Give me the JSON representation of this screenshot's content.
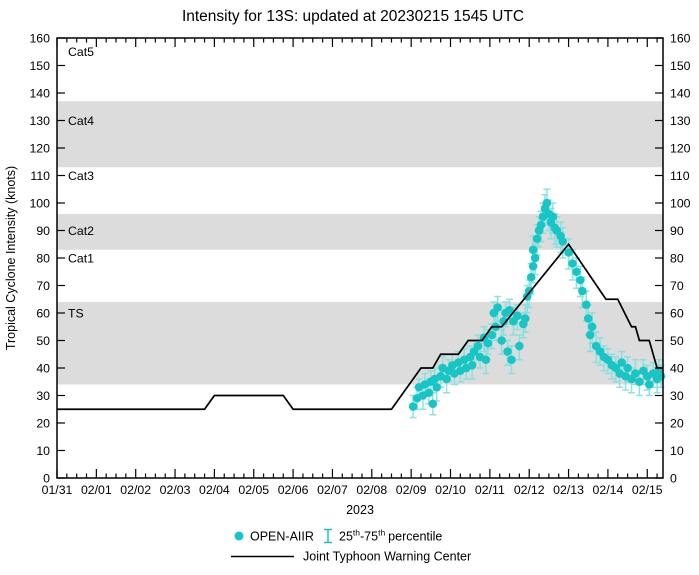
{
  "colors": {
    "accent_cyan": "#18c5c5",
    "errorbar_cyan": "#85dfdf",
    "band_gray": "#dcdcdc",
    "line_black": "#000000"
  },
  "chart_data": {
    "type": "line+scatter",
    "title": "Intensity for 13S: updated at 20230215 1545 UTC",
    "ylabel": "Tropical Cyclone Intensity (knots)",
    "xlabel_year": "2023",
    "ylim": [
      0,
      160
    ],
    "y_ticks": [
      0,
      10,
      20,
      30,
      40,
      50,
      60,
      70,
      80,
      90,
      100,
      110,
      120,
      130,
      140,
      150,
      160
    ],
    "x_range_days": [
      0,
      15.4
    ],
    "x_day_labels": [
      "01/31",
      "02/01",
      "02/02",
      "02/03",
      "02/04",
      "02/05",
      "02/06",
      "02/07",
      "02/08",
      "02/09",
      "02/10",
      "02/11",
      "02/12",
      "02/13",
      "02/14",
      "02/15"
    ],
    "minor_tick_step_days": 0.25,
    "grid": false,
    "legend_position": "bottom-center",
    "bands": [
      {
        "label": "TS",
        "min": 34,
        "max": 64,
        "shaded": true,
        "label_at": 60
      },
      {
        "label": "Cat1",
        "min": 64,
        "max": 83,
        "shaded": false,
        "label_at": 80
      },
      {
        "label": "Cat2",
        "min": 83,
        "max": 96,
        "shaded": true,
        "label_at": 90
      },
      {
        "label": "Cat3",
        "min": 96,
        "max": 113,
        "shaded": false,
        "label_at": 110
      },
      {
        "label": "Cat4",
        "min": 113,
        "max": 137,
        "shaded": true,
        "label_at": 130
      },
      {
        "label": "Cat5",
        "min": 137,
        "max": 160,
        "shaded": false,
        "label_at": 155
      }
    ],
    "series": [
      {
        "name": "Joint Typhoon Warning Center",
        "type": "line",
        "color": "#000000",
        "points": [
          [
            0,
            25
          ],
          [
            3.75,
            25
          ],
          [
            4,
            30
          ],
          [
            5.75,
            30
          ],
          [
            6,
            25
          ],
          [
            8.5,
            25
          ],
          [
            8.75,
            30
          ],
          [
            9.25,
            40
          ],
          [
            9.55,
            40
          ],
          [
            9.75,
            45
          ],
          [
            10.2,
            45
          ],
          [
            10.45,
            50
          ],
          [
            10.8,
            50
          ],
          [
            11.05,
            55
          ],
          [
            11.3,
            55
          ],
          [
            13.0,
            85
          ],
          [
            13.95,
            65
          ],
          [
            14.25,
            65
          ],
          [
            14.6,
            55
          ],
          [
            14.7,
            55
          ],
          [
            14.8,
            50
          ],
          [
            15.05,
            50
          ],
          [
            15.25,
            40
          ],
          [
            15.4,
            40
          ]
        ]
      },
      {
        "name": "OPEN-AIIR",
        "type": "scatter-errorbar",
        "color": "#18c5c5",
        "errorbar_color": "#85dfdf",
        "points": [
          [
            9.05,
            26,
            22,
            30
          ],
          [
            9.15,
            29,
            25,
            33
          ],
          [
            9.2,
            33,
            29,
            36
          ],
          [
            9.3,
            30,
            25,
            34
          ],
          [
            9.35,
            34,
            30,
            38
          ],
          [
            9.45,
            31,
            27,
            36
          ],
          [
            9.5,
            35,
            31,
            39
          ],
          [
            9.55,
            27,
            23,
            31
          ],
          [
            9.6,
            36,
            32,
            40
          ],
          [
            9.65,
            33,
            28,
            37
          ],
          [
            9.75,
            37,
            33,
            41
          ],
          [
            9.8,
            40,
            36,
            44
          ],
          [
            9.9,
            36,
            31,
            40
          ],
          [
            9.95,
            39,
            35,
            43
          ],
          [
            10.05,
            41,
            37,
            45
          ],
          [
            10.1,
            38,
            34,
            42
          ],
          [
            10.2,
            42,
            38,
            46
          ],
          [
            10.25,
            39,
            35,
            43
          ],
          [
            10.35,
            43,
            39,
            47
          ],
          [
            10.4,
            40,
            36,
            44
          ],
          [
            10.5,
            44,
            40,
            48
          ],
          [
            10.55,
            41,
            36,
            45
          ],
          [
            10.6,
            46,
            42,
            50
          ],
          [
            10.7,
            48,
            43,
            52
          ],
          [
            10.75,
            44,
            40,
            49
          ],
          [
            10.85,
            51,
            46,
            55
          ],
          [
            10.9,
            43,
            38,
            47
          ],
          [
            10.95,
            49,
            45,
            54
          ],
          [
            11.05,
            52,
            47,
            56
          ],
          [
            11.1,
            60,
            55,
            64
          ],
          [
            11.15,
            55,
            50,
            60
          ],
          [
            11.2,
            62,
            57,
            66
          ],
          [
            11.3,
            50,
            45,
            54
          ],
          [
            11.35,
            57,
            52,
            61
          ],
          [
            11.4,
            60,
            55,
            64
          ],
          [
            11.45,
            46,
            41,
            50
          ],
          [
            11.5,
            61,
            56,
            65
          ],
          [
            11.55,
            43,
            38,
            48
          ],
          [
            11.6,
            57,
            52,
            62
          ],
          [
            11.7,
            59,
            54,
            63
          ],
          [
            11.75,
            48,
            43,
            52
          ],
          [
            11.85,
            56,
            51,
            60
          ],
          [
            11.9,
            58,
            53,
            63
          ],
          [
            11.95,
            66,
            60,
            70
          ],
          [
            12.0,
            68,
            62,
            72
          ],
          [
            12.05,
            73,
            67,
            78
          ],
          [
            12.1,
            77,
            71,
            82
          ],
          [
            12.1,
            83,
            77,
            88
          ],
          [
            12.15,
            80,
            74,
            85
          ],
          [
            12.2,
            87,
            81,
            92
          ],
          [
            12.25,
            90,
            84,
            95
          ],
          [
            12.3,
            92,
            86,
            97
          ],
          [
            12.35,
            95,
            89,
            100
          ],
          [
            12.4,
            98,
            92,
            103
          ],
          [
            12.45,
            100,
            94,
            105
          ],
          [
            12.5,
            96,
            90,
            101
          ],
          [
            12.55,
            93,
            87,
            98
          ],
          [
            12.6,
            95,
            89,
            100
          ],
          [
            12.65,
            91,
            85,
            96
          ],
          [
            12.7,
            90,
            84,
            95
          ],
          [
            12.8,
            88,
            82,
            93
          ],
          [
            12.85,
            86,
            80,
            91
          ],
          [
            13.0,
            82,
            76,
            87
          ],
          [
            13.1,
            78,
            72,
            83
          ],
          [
            13.2,
            75,
            69,
            80
          ],
          [
            13.3,
            72,
            66,
            77
          ],
          [
            13.35,
            68,
            62,
            73
          ],
          [
            13.45,
            63,
            57,
            68
          ],
          [
            13.5,
            58,
            52,
            63
          ],
          [
            13.55,
            52,
            46,
            57
          ],
          [
            13.6,
            55,
            49,
            60
          ],
          [
            13.7,
            48,
            42,
            53
          ],
          [
            13.8,
            46,
            41,
            51
          ],
          [
            13.9,
            44,
            39,
            48
          ],
          [
            14.0,
            43,
            38,
            47
          ],
          [
            14.1,
            41,
            36,
            45
          ],
          [
            14.2,
            40,
            35,
            44
          ],
          [
            14.3,
            38,
            33,
            42
          ],
          [
            14.35,
            42,
            37,
            46
          ],
          [
            14.45,
            37,
            32,
            41
          ],
          [
            14.5,
            40,
            35,
            44
          ],
          [
            14.6,
            36,
            31,
            40
          ],
          [
            14.7,
            38,
            34,
            43
          ],
          [
            14.8,
            35,
            30,
            39
          ],
          [
            14.9,
            39,
            34,
            43
          ],
          [
            15.0,
            37,
            32,
            41
          ],
          [
            15.05,
            34,
            30,
            38
          ],
          [
            15.15,
            38,
            33,
            42
          ],
          [
            15.25,
            36,
            31,
            40
          ],
          [
            15.3,
            39,
            35,
            43
          ],
          [
            15.35,
            37,
            33,
            41
          ]
        ]
      }
    ],
    "legend": {
      "openaiir_label": "OPEN-AIIR",
      "percentile": {
        "pre": "25",
        "sup1": "th",
        "mid": "-75",
        "sup2": "th",
        "post": "percentile"
      },
      "jtwc_label": "Joint Typhoon Warning Center"
    }
  }
}
